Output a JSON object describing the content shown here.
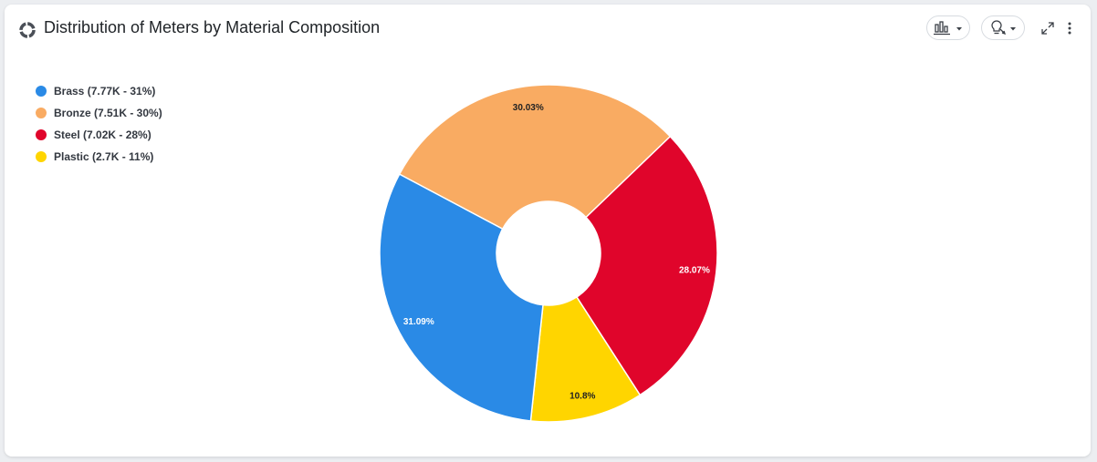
{
  "card": {
    "title": "Distribution of Meters by Material Composition",
    "icons": [
      "donut-chart-icon",
      "bar-chart-icon",
      "caret-down-icon",
      "insight-bulb-icon",
      "caret-down-icon",
      "expand-icon",
      "more-vertical-icon"
    ]
  },
  "legend": {
    "items": [
      {
        "label": "Brass (7.77K - 31%)",
        "color": "#2a8ae6"
      },
      {
        "label": "Bronze (7.51K - 30%)",
        "color": "#f9ab62"
      },
      {
        "label": "Steel (7.02K - 28%)",
        "color": "#e0052b"
      },
      {
        "label": "Plastic (2.7K - 11%)",
        "color": "#ffd500"
      }
    ]
  },
  "chart_data": {
    "type": "pie",
    "variant": "donut",
    "title": "Distribution of Meters by Material Composition",
    "legend_position": "top-left",
    "slices": [
      {
        "name": "Bronze",
        "value": 7.51,
        "unit": "K",
        "percent": 30.03,
        "label": "30.03%",
        "color": "#f9ab62",
        "label_color": "#222222"
      },
      {
        "name": "Steel",
        "value": 7.02,
        "unit": "K",
        "percent": 28.07,
        "label": "28.07%",
        "color": "#e0052b",
        "label_color": "#ffffff"
      },
      {
        "name": "Plastic",
        "value": 2.7,
        "unit": "K",
        "percent": 10.8,
        "label": "10.8%",
        "color": "#ffd500",
        "label_color": "#222222"
      },
      {
        "name": "Brass",
        "value": 7.77,
        "unit": "K",
        "percent": 31.09,
        "label": "31.09%",
        "color": "#2a8ae6",
        "label_color": "#ffffff"
      }
    ]
  }
}
